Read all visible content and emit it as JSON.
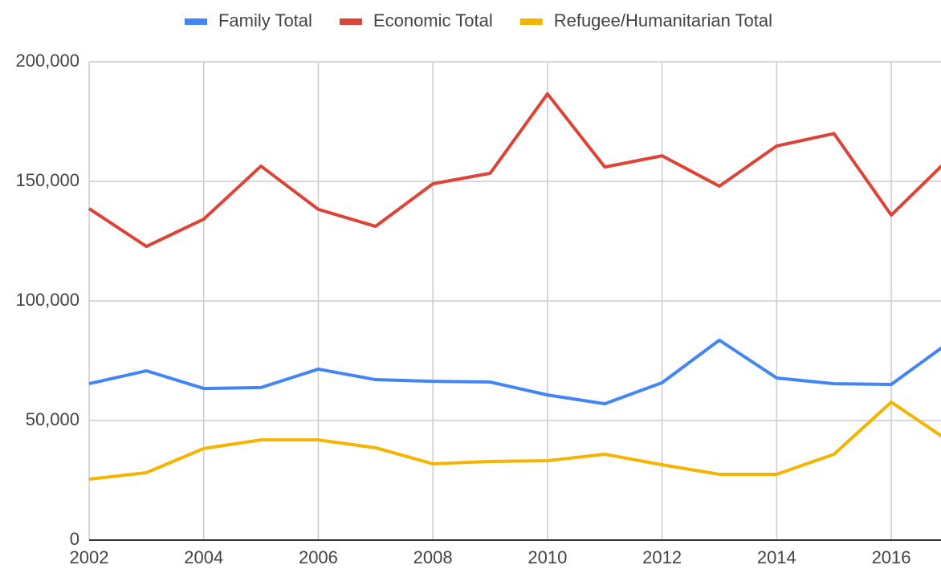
{
  "chart_data": {
    "type": "line",
    "x": [
      2002,
      2003,
      2004,
      2005,
      2006,
      2007,
      2008,
      2009,
      2010,
      2011,
      2012,
      2013,
      2014,
      2015,
      2016,
      2017
    ],
    "series": [
      {
        "name": "Family Total",
        "color": "#4285f4",
        "values": [
          65400,
          70800,
          63400,
          63800,
          71500,
          67100,
          66400,
          66100,
          60700,
          57000,
          65800,
          83600,
          67800,
          65400,
          65100,
          82500
        ]
      },
      {
        "name": "Economic Total",
        "color": "#db4437",
        "values": [
          138600,
          122800,
          134200,
          156400,
          138300,
          131200,
          149000,
          153400,
          186600,
          156000,
          160700,
          148000,
          164800,
          170000,
          135900,
          159300
        ]
      },
      {
        "name": "Refugee/Humanitarian Total",
        "color": "#f4b400",
        "values": [
          25500,
          28200,
          38300,
          41900,
          41900,
          38600,
          31900,
          32900,
          33200,
          35900,
          31500,
          27500,
          27500,
          35900,
          57700,
          41500
        ]
      }
    ],
    "xlim": [
      2002,
      2017
    ],
    "xticks": [
      2002,
      2004,
      2006,
      2008,
      2010,
      2012,
      2014,
      2016
    ],
    "ylim": [
      0,
      200000
    ],
    "yticks": [
      0,
      {
        "value": 50000,
        "label": "50,000"
      },
      {
        "value": 100000,
        "label": "100,000"
      },
      {
        "value": 150000,
        "label": "150,000"
      },
      {
        "value": 200000,
        "label": "200,000"
      }
    ],
    "grid": true,
    "legend": "top"
  }
}
